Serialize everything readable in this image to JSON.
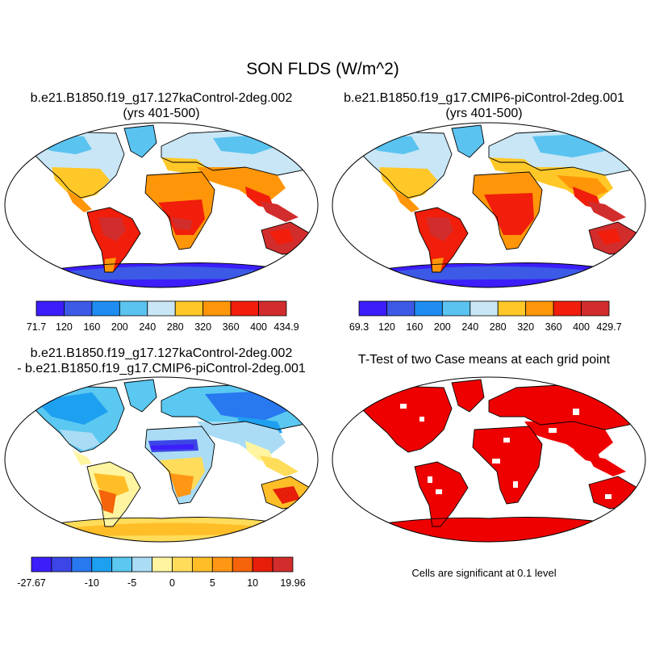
{
  "title": "SON FLDS (W/m^2)",
  "panels": [
    {
      "title_line1": "b.e21.B1850.f19_g17.127kaControl-2deg.002",
      "title_line2": "(yrs 401-500)",
      "colorbar": {
        "labels": [
          "71.7",
          "120",
          "160",
          "200",
          "240",
          "280",
          "320",
          "360",
          "400",
          "434.9"
        ],
        "colors": [
          "#3c1efa",
          "#3c5ae6",
          "#1e8cf0",
          "#5ac3f0",
          "#c8e6f5",
          "#ffc828",
          "#ff960a",
          "#f01e0a",
          "#d22d2d"
        ]
      }
    },
    {
      "title_line1": "b.e21.B1850.f19_g17.CMIP6-piControl-2deg.001",
      "title_line2": "(yrs 401-500)",
      "colorbar": {
        "labels": [
          "69.3",
          "120",
          "160",
          "200",
          "240",
          "280",
          "320",
          "360",
          "400",
          "429.7"
        ],
        "colors": [
          "#3c1efa",
          "#3c5ae6",
          "#1e8cf0",
          "#5ac3f0",
          "#c8e6f5",
          "#ffc828",
          "#ff960a",
          "#f01e0a",
          "#d22d2d"
        ]
      }
    },
    {
      "title_line1": "b.e21.B1850.f19_g17.127kaControl-2deg.002",
      "title_line2": "- b.e21.B1850.f19_g17.CMIP6-piControl-2deg.001",
      "colorbar": {
        "labels": [
          "-27.67",
          "-10",
          "-5",
          "0",
          "5",
          "10",
          "19.96"
        ],
        "colors": [
          "#3c1efa",
          "#3c46e6",
          "#2878f0",
          "#1ea0f0",
          "#5ac8f0",
          "#aadcf5",
          "#fff5a0",
          "#ffdc5a",
          "#ffbe28",
          "#ff9614",
          "#f5640a",
          "#e61e0a",
          "#d22d2d"
        ]
      }
    },
    {
      "title_line1": "T-Test of two Case means at each grid point",
      "note": "Cells are significant at 0.1 level",
      "fill_color": "#ee0000"
    }
  ]
}
